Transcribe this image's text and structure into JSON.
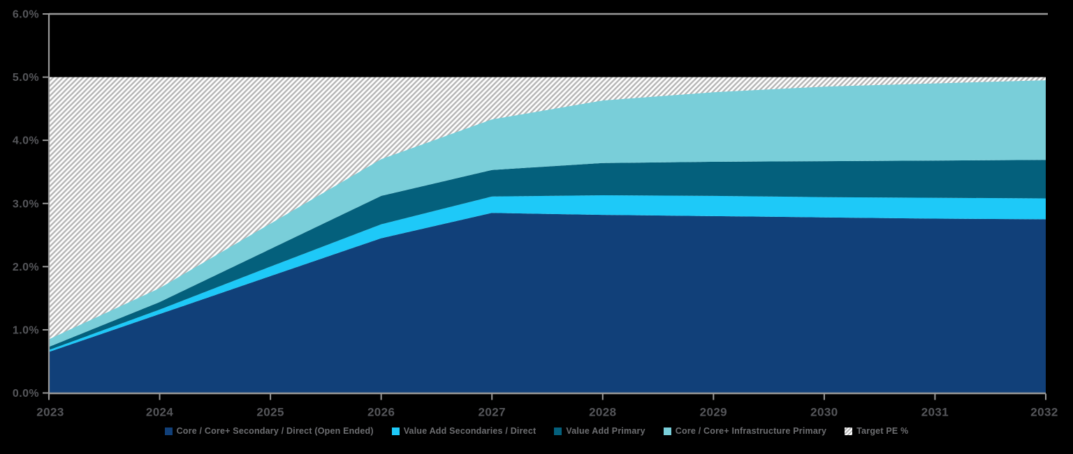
{
  "chart_data": {
    "type": "area",
    "stacked": true,
    "title": "",
    "xlabel": "",
    "ylabel": "",
    "categories": [
      "2023",
      "2024",
      "2025",
      "2026",
      "2027",
      "2028",
      "2029",
      "2030",
      "2031",
      "2032"
    ],
    "series": [
      {
        "name": "Core / Core+ Secondary / Direct (Open Ended)",
        "color": "#114079",
        "values": [
          0.65,
          1.25,
          1.85,
          2.45,
          2.85,
          2.82,
          2.8,
          2.78,
          2.76,
          2.75
        ]
      },
      {
        "name": "Value Add Secondaries / Direct",
        "color": "#1ec9f8",
        "values": [
          0.03,
          0.07,
          0.15,
          0.22,
          0.26,
          0.31,
          0.32,
          0.32,
          0.33,
          0.33
        ]
      },
      {
        "name": "Value Add Primary",
        "color": "#04607c",
        "values": [
          0.05,
          0.12,
          0.28,
          0.45,
          0.42,
          0.51,
          0.54,
          0.57,
          0.59,
          0.61
        ]
      },
      {
        "name": "Core / Core+ Infrastructure Primary",
        "color": "#79ced9",
        "values": [
          0.12,
          0.22,
          0.4,
          0.58,
          0.8,
          0.99,
          1.1,
          1.18,
          1.22,
          1.26
        ]
      }
    ],
    "target": {
      "name": "Target PE %",
      "value": 5.0,
      "fill_style": "diagonal-hatch",
      "hatch_background": "#ffffff",
      "hatch_stripe": "#b5b5b5"
    },
    "ylim": [
      0,
      6
    ],
    "ytick_labels": [
      "0.0%",
      "1.0%",
      "2.0%",
      "3.0%",
      "4.0%",
      "5.0%",
      "6.0%"
    ],
    "grid": "top-border-only",
    "legend_position": "bottom",
    "colors": {
      "background": "#000000",
      "axis_line": "#999999",
      "axis_label": "#55565a",
      "legend_text": "#6d6e71"
    }
  }
}
